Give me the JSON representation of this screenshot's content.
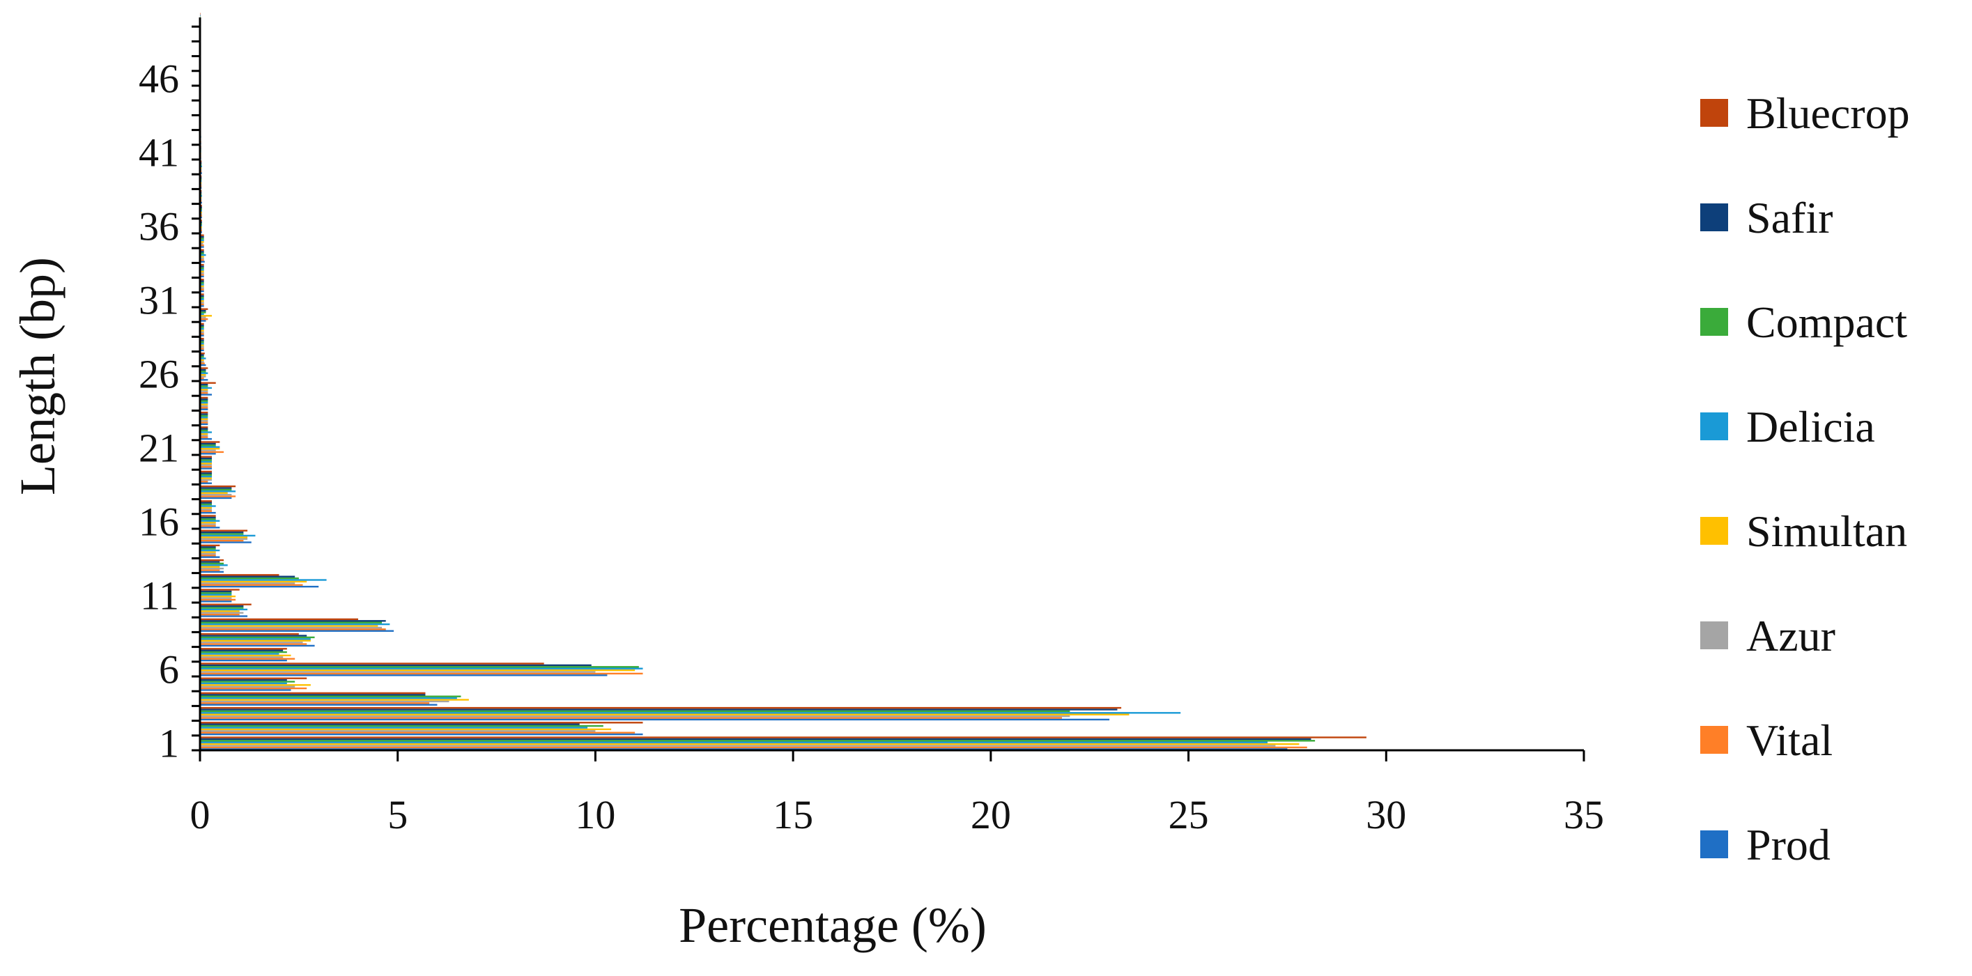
{
  "chart_data": {
    "type": "bar",
    "orientation": "horizontal",
    "title": "",
    "xlabel": "Percentage (%)",
    "ylabel": "Length (bp)",
    "xlim": [
      0,
      35
    ],
    "x_ticks": [
      "0",
      "5",
      "10",
      "15",
      "20",
      "25",
      "30",
      "35"
    ],
    "ylim": [
      1,
      50
    ],
    "y_ticks": [
      "1",
      "6",
      "11",
      "16",
      "21",
      "26",
      "31",
      "36",
      "41",
      "46"
    ],
    "grid": false,
    "legend_position": "right",
    "categories": [
      1,
      2,
      3,
      4,
      5,
      6,
      7,
      8,
      9,
      10,
      11,
      12,
      13,
      14,
      15,
      16,
      17,
      18,
      19,
      20,
      21,
      22,
      23,
      24,
      25,
      26,
      27,
      28,
      29,
      30,
      31,
      32,
      33,
      34,
      35,
      36,
      37,
      38,
      39,
      40,
      41,
      42,
      43,
      44,
      45,
      46,
      47,
      48,
      49,
      50
    ],
    "series": [
      {
        "name": "Prod",
        "color": "#1f6fc5",
        "values": [
          27.5,
          11.2,
          23.0,
          6.0,
          2.3,
          10.3,
          2.2,
          2.9,
          4.9,
          1.2,
          0.8,
          3.0,
          0.6,
          0.5,
          1.3,
          0.5,
          0.4,
          0.8,
          0.3,
          0.3,
          0.4,
          0.3,
          0.2,
          0.2,
          0.3,
          0.2,
          0.15,
          0.1,
          0.1,
          0.15,
          0.1,
          0.1,
          0.1,
          0.12,
          0.1,
          0.05,
          0.05,
          0.05,
          0.04,
          0.05,
          0.03,
          0.03,
          0.02,
          0.02,
          0.02,
          0.02,
          0.02,
          0.01,
          0.01,
          0.01
        ]
      },
      {
        "name": "Vital",
        "color": "#ff7f27",
        "values": [
          28.0,
          11.0,
          21.8,
          5.8,
          2.7,
          11.2,
          2.4,
          2.7,
          4.7,
          1.0,
          0.9,
          2.6,
          0.5,
          0.4,
          1.1,
          0.4,
          0.3,
          0.9,
          0.2,
          0.3,
          0.6,
          0.2,
          0.2,
          0.2,
          0.2,
          0.1,
          0.12,
          0.1,
          0.1,
          0.2,
          0.1,
          0.1,
          0.1,
          0.1,
          0.1,
          0.05,
          0.05,
          0.04,
          0.04,
          0.04,
          0.03,
          0.03,
          0.02,
          0.02,
          0.02,
          0.01,
          0.01,
          0.01,
          0.01,
          0.01
        ]
      },
      {
        "name": "Azur",
        "color": "#a5a5a5",
        "values": [
          27.2,
          10.0,
          22.0,
          6.3,
          2.4,
          10.0,
          2.1,
          2.6,
          4.6,
          1.1,
          0.8,
          2.4,
          0.6,
          0.4,
          1.2,
          0.4,
          0.3,
          0.8,
          0.3,
          0.3,
          0.4,
          0.2,
          0.2,
          0.2,
          0.2,
          0.15,
          0.1,
          0.1,
          0.1,
          0.15,
          0.1,
          0.1,
          0.1,
          0.1,
          0.08,
          0.05,
          0.05,
          0.04,
          0.04,
          0.04,
          0.03,
          0.02,
          0.02,
          0.02,
          0.02,
          0.01,
          0.01,
          0.01,
          0.01,
          0.01
        ]
      },
      {
        "name": "Simultan",
        "color": "#ffc000",
        "values": [
          27.8,
          10.4,
          23.5,
          6.8,
          2.8,
          11.0,
          2.3,
          2.8,
          4.5,
          1.0,
          0.9,
          2.7,
          0.5,
          0.4,
          1.2,
          0.4,
          0.3,
          0.7,
          0.3,
          0.3,
          0.5,
          0.2,
          0.2,
          0.2,
          0.2,
          0.15,
          0.1,
          0.1,
          0.1,
          0.3,
          0.1,
          0.1,
          0.1,
          0.1,
          0.1,
          0.05,
          0.05,
          0.04,
          0.04,
          0.04,
          0.03,
          0.02,
          0.02,
          0.02,
          0.02,
          0.01,
          0.01,
          0.01,
          0.01,
          0.01
        ]
      },
      {
        "name": "Delicia",
        "color": "#1a9ad6",
        "values": [
          27.0,
          9.8,
          24.8,
          6.5,
          2.2,
          11.2,
          2.0,
          2.8,
          4.8,
          1.2,
          0.8,
          3.2,
          0.7,
          0.5,
          1.4,
          0.5,
          0.4,
          0.9,
          0.3,
          0.3,
          0.5,
          0.3,
          0.2,
          0.2,
          0.3,
          0.2,
          0.15,
          0.1,
          0.1,
          0.1,
          0.1,
          0.1,
          0.1,
          0.15,
          0.1,
          0.05,
          0.05,
          0.05,
          0.04,
          0.05,
          0.03,
          0.03,
          0.02,
          0.02,
          0.02,
          0.02,
          0.02,
          0.01,
          0.01,
          0.01
        ]
      },
      {
        "name": "Compact",
        "color": "#3aab3a",
        "values": [
          28.2,
          10.2,
          22.0,
          6.6,
          2.4,
          11.1,
          2.2,
          2.9,
          4.6,
          1.1,
          0.8,
          2.5,
          0.6,
          0.4,
          1.1,
          0.4,
          0.3,
          0.8,
          0.3,
          0.3,
          0.4,
          0.2,
          0.2,
          0.2,
          0.2,
          0.15,
          0.1,
          0.1,
          0.1,
          0.15,
          0.1,
          0.1,
          0.1,
          0.1,
          0.1,
          0.05,
          0.05,
          0.04,
          0.04,
          0.04,
          0.03,
          0.02,
          0.02,
          0.02,
          0.02,
          0.01,
          0.01,
          0.01,
          0.01,
          0.01
        ]
      },
      {
        "name": "Safir",
        "color": "#0d3f7a",
        "values": [
          28.1,
          9.6,
          23.2,
          5.7,
          2.2,
          9.9,
          2.1,
          2.7,
          4.7,
          1.1,
          0.8,
          2.4,
          0.5,
          0.4,
          1.1,
          0.4,
          0.3,
          0.8,
          0.3,
          0.3,
          0.4,
          0.2,
          0.2,
          0.2,
          0.2,
          0.15,
          0.1,
          0.1,
          0.1,
          0.15,
          0.1,
          0.1,
          0.1,
          0.1,
          0.1,
          0.05,
          0.05,
          0.04,
          0.04,
          0.04,
          0.03,
          0.02,
          0.02,
          0.02,
          0.02,
          0.01,
          0.01,
          0.01,
          0.01,
          0.01
        ]
      },
      {
        "name": "Bluecrop",
        "color": "#c0440c",
        "values": [
          29.5,
          11.2,
          23.3,
          5.7,
          2.7,
          8.7,
          2.2,
          2.5,
          4.0,
          1.3,
          1.0,
          2.0,
          0.6,
          0.5,
          1.2,
          0.4,
          0.3,
          0.9,
          0.3,
          0.3,
          0.5,
          0.2,
          0.2,
          0.2,
          0.4,
          0.2,
          0.12,
          0.1,
          0.1,
          0.2,
          0.1,
          0.1,
          0.1,
          0.1,
          0.1,
          0.05,
          0.05,
          0.04,
          0.04,
          0.04,
          0.03,
          0.02,
          0.02,
          0.02,
          0.02,
          0.01,
          0.01,
          0.01,
          0.01,
          0.01
        ]
      }
    ],
    "legend_order": [
      "Bluecrop",
      "Safir",
      "Compact",
      "Delicia",
      "Simultan",
      "Azur",
      "Vital",
      "Prod"
    ]
  }
}
